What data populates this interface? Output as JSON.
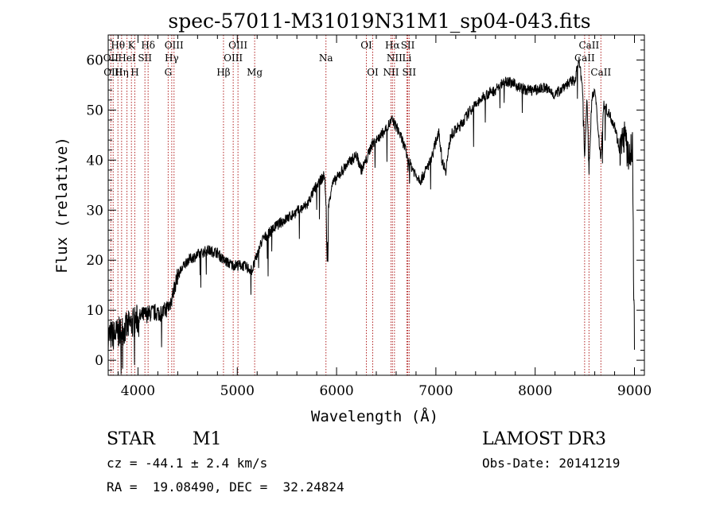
{
  "chart_data": {
    "type": "line",
    "title": "spec-57011-M31019N31M1_sp04-043.fits",
    "xlabel": "Wavelength (Å)",
    "ylabel": "Flux (relative)",
    "xlim": [
      3700,
      9100
    ],
    "ylim": [
      -3,
      65
    ],
    "xticks": [
      4000,
      5000,
      6000,
      7000,
      8000,
      9000
    ],
    "yticks": [
      0,
      10,
      20,
      30,
      40,
      50,
      60
    ],
    "grid": false,
    "line_color": "#000000",
    "marker_color": "#b22222",
    "continuum": [
      [
        3700,
        5
      ],
      [
        3760,
        5
      ],
      [
        3850,
        6
      ],
      [
        3950,
        7.5
      ],
      [
        4050,
        9
      ],
      [
        4150,
        9.5
      ],
      [
        4250,
        9.5
      ],
      [
        4320,
        11
      ],
      [
        4400,
        17
      ],
      [
        4500,
        20
      ],
      [
        4600,
        21
      ],
      [
        4700,
        22
      ],
      [
        4800,
        21.5
      ],
      [
        4860,
        20
      ],
      [
        4950,
        19
      ],
      [
        5050,
        19
      ],
      [
        5150,
        18
      ],
      [
        5250,
        24
      ],
      [
        5400,
        27
      ],
      [
        5550,
        29
      ],
      [
        5700,
        31
      ],
      [
        5800,
        35
      ],
      [
        5880,
        37
      ],
      [
        5895,
        30
      ],
      [
        5905,
        19
      ],
      [
        5915,
        30
      ],
      [
        5950,
        35
      ],
      [
        6100,
        39
      ],
      [
        6200,
        41
      ],
      [
        6250,
        38
      ],
      [
        6300,
        40
      ],
      [
        6350,
        43
      ],
      [
        6450,
        45
      ],
      [
        6560,
        48
      ],
      [
        6620,
        46
      ],
      [
        6680,
        43
      ],
      [
        6720,
        40
      ],
      [
        6800,
        37
      ],
      [
        6850,
        36
      ],
      [
        6950,
        40
      ],
      [
        7030,
        46
      ],
      [
        7060,
        40
      ],
      [
        7100,
        38
      ],
      [
        7150,
        45
      ],
      [
        7250,
        47
      ],
      [
        7350,
        50
      ],
      [
        7500,
        53
      ],
      [
        7600,
        54
      ],
      [
        7700,
        56
      ],
      [
        7800,
        55
      ],
      [
        7900,
        54
      ],
      [
        8000,
        54
      ],
      [
        8100,
        54.5
      ],
      [
        8200,
        53
      ],
      [
        8300,
        55
      ],
      [
        8400,
        56
      ],
      [
        8440,
        60
      ],
      [
        8480,
        54
      ],
      [
        8498,
        40
      ],
      [
        8520,
        53
      ],
      [
        8542,
        38
      ],
      [
        8570,
        52
      ],
      [
        8600,
        54
      ],
      [
        8662,
        40
      ],
      [
        8690,
        51
      ],
      [
        8750,
        49
      ],
      [
        8800,
        47
      ],
      [
        8850,
        42
      ],
      [
        8900,
        45
      ],
      [
        8940,
        40
      ],
      [
        8980,
        43
      ],
      [
        8992,
        15
      ],
      [
        9000,
        5
      ]
    ],
    "lines_top": [
      {
        "label": "Hθ",
        "wavelength": 3798
      },
      {
        "label": "K",
        "wavelength": 3934
      },
      {
        "label": "Hδ",
        "wavelength": 4102
      },
      {
        "label": "OIII",
        "wavelength": 4363
      },
      {
        "label": "OIII",
        "wavelength": 5007
      },
      {
        "label": "OI",
        "wavelength": 6300
      },
      {
        "label": "Hα",
        "wavelength": 6563
      },
      {
        "label": "SII",
        "wavelength": 6717
      },
      {
        "label": "CaII",
        "wavelength": 8542
      }
    ],
    "lines_mid": [
      {
        "label": "OII",
        "wavelength": 3727
      },
      {
        "label": "HeI",
        "wavelength": 3889
      },
      {
        "label": "SII",
        "wavelength": 4070
      },
      {
        "label": "Hγ",
        "wavelength": 4340
      },
      {
        "label": "OIII",
        "wavelength": 4959
      },
      {
        "label": "Na",
        "wavelength": 5893
      },
      {
        "label": "NII",
        "wavelength": 6583
      },
      {
        "label": "Li",
        "wavelength": 6708
      },
      {
        "label": "CaII",
        "wavelength": 8498
      }
    ],
    "lines_low": [
      {
        "label": "OIII",
        "wavelength": 3750
      },
      {
        "label": "Hη",
        "wavelength": 3835
      },
      {
        "label": "H",
        "wavelength": 3968
      },
      {
        "label": "G",
        "wavelength": 4304
      },
      {
        "label": "Hβ",
        "wavelength": 4861
      },
      {
        "label": "Mg",
        "wavelength": 5175
      },
      {
        "label": "OI",
        "wavelength": 6364
      },
      {
        "label": "NII",
        "wavelength": 6548
      },
      {
        "label": "SII",
        "wavelength": 6731
      },
      {
        "label": "CaII",
        "wavelength": 8662
      }
    ]
  },
  "footer": {
    "class_label": "STAR",
    "subclass": "M1",
    "survey": "LAMOST DR3",
    "cz": "cz = -44.1 ± 2.4 km/s",
    "obs_date": "Obs-Date: 20141219",
    "coords": "RA =  19.08490, DEC =  32.24824"
  }
}
